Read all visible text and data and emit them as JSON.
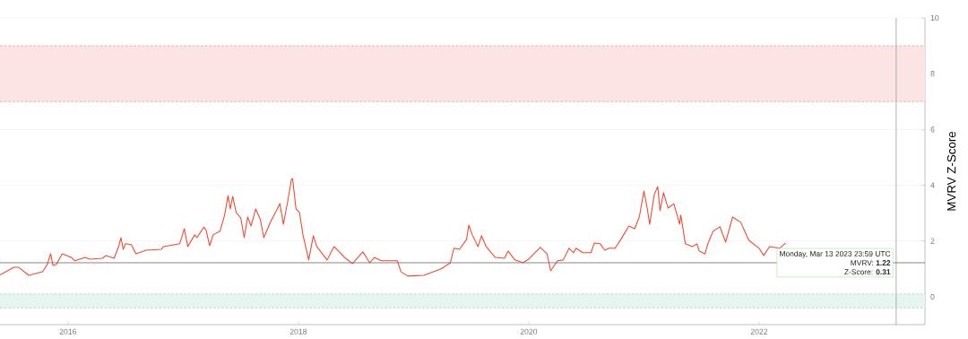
{
  "chart_data": {
    "type": "line",
    "ylabel": "MVRV Z-Score",
    "xlim": [
      2015.41,
      2023.44
    ],
    "ylim": [
      -1,
      10
    ],
    "xticks": [
      2016,
      2018,
      2020,
      2022
    ],
    "yticks": [
      0,
      2,
      4,
      6,
      8,
      10
    ],
    "grid": "y",
    "series": [
      {
        "color": "#f4462d",
        "x": [
          2015.41,
          2015.53,
          2015.57,
          2015.66,
          2015.78,
          2015.82,
          2015.85,
          2015.87,
          2015.9,
          2015.95,
          2016.03,
          2016.06,
          2016.15,
          2016.19,
          2016.3,
          2016.33,
          2016.4,
          2016.44,
          2016.46,
          2016.48,
          2016.5,
          2016.55,
          2016.59,
          2016.68,
          2016.81,
          2016.83,
          2016.97,
          2017.01,
          2017.04,
          2017.1,
          2017.12,
          2017.18,
          2017.2,
          2017.23,
          2017.26,
          2017.32,
          2017.36,
          2017.39,
          2017.41,
          2017.43,
          2017.46,
          2017.5,
          2017.53,
          2017.56,
          2017.59,
          2017.63,
          2017.67,
          2017.7,
          2017.76,
          2017.81,
          2017.84,
          2017.87,
          2017.91,
          2017.94,
          2017.95,
          2017.98,
          2018.01,
          2018.04,
          2018.09,
          2018.13,
          2018.16,
          2018.19,
          2018.25,
          2018.31,
          2018.41,
          2018.47,
          2018.56,
          2018.62,
          2018.66,
          2018.72,
          2018.86,
          2018.89,
          2018.95,
          2019.09,
          2019.24,
          2019.32,
          2019.35,
          2019.4,
          2019.46,
          2019.48,
          2019.51,
          2019.56,
          2019.59,
          2019.63,
          2019.71,
          2019.79,
          2019.82,
          2019.88,
          2019.95,
          2020.0,
          2020.1,
          2020.16,
          2020.19,
          2020.25,
          2020.3,
          2020.35,
          2020.39,
          2020.41,
          2020.47,
          2020.54,
          2020.57,
          2020.62,
          2020.66,
          2020.7,
          2020.75,
          2020.8,
          2020.87,
          2020.92,
          2020.96,
          2021.0,
          2021.03,
          2021.05,
          2021.09,
          2021.12,
          2021.14,
          2021.17,
          2021.21,
          2021.26,
          2021.31,
          2021.32,
          2021.36,
          2021.42,
          2021.46,
          2021.48,
          2021.53,
          2021.56,
          2021.6,
          2021.66,
          2021.71,
          2021.77,
          2021.84,
          2021.91,
          2022.0,
          2022.04,
          2022.09,
          2022.18,
          2022.23
        ],
        "values": [
          0.78,
          1.06,
          1.06,
          0.77,
          0.9,
          1.16,
          1.54,
          1.12,
          1.16,
          1.54,
          1.41,
          1.29,
          1.41,
          1.35,
          1.38,
          1.48,
          1.38,
          1.8,
          2.12,
          1.7,
          1.9,
          1.87,
          1.54,
          1.67,
          1.7,
          1.8,
          1.9,
          2.44,
          1.8,
          2.22,
          2.12,
          2.5,
          2.38,
          1.83,
          2.22,
          2.35,
          2.93,
          3.63,
          3.15,
          3.6,
          3.02,
          2.83,
          2.12,
          2.86,
          2.54,
          3.15,
          2.77,
          2.12,
          2.7,
          3.09,
          3.34,
          2.6,
          3.47,
          4.21,
          4.24,
          3.15,
          3.02,
          2.22,
          1.32,
          2.19,
          1.8,
          1.64,
          1.32,
          1.8,
          1.38,
          1.19,
          1.61,
          1.22,
          1.41,
          1.29,
          1.29,
          0.9,
          0.74,
          0.77,
          1.0,
          1.22,
          1.74,
          1.7,
          2.06,
          2.57,
          2.22,
          1.8,
          2.19,
          1.8,
          1.41,
          1.38,
          1.64,
          1.32,
          1.22,
          1.35,
          1.77,
          1.54,
          0.93,
          1.29,
          1.32,
          1.74,
          1.58,
          1.74,
          1.58,
          1.58,
          1.93,
          1.9,
          1.67,
          1.74,
          1.74,
          2.06,
          2.54,
          2.44,
          2.86,
          3.79,
          3.15,
          2.6,
          3.67,
          3.95,
          3.09,
          3.73,
          3.18,
          3.34,
          2.6,
          2.93,
          1.9,
          1.8,
          1.9,
          1.64,
          1.54,
          1.96,
          2.35,
          2.51,
          1.96,
          2.86,
          2.67,
          2.03,
          1.74,
          1.48,
          1.8,
          1.74,
          1.93
        ]
      }
    ],
    "bands": [
      {
        "axis": "y",
        "from": 7,
        "to": 9,
        "color": "#fce4e4"
      },
      {
        "axis": "y",
        "from": -0.4,
        "to": 0.1,
        "color": "#e6f5ef"
      }
    ],
    "ref_lines": [
      {
        "axis": "x",
        "value": 2023.19,
        "color": "#999999"
      },
      {
        "axis": "y",
        "value": 1.22,
        "color": "#666666"
      },
      {
        "axis": "y",
        "value": 9,
        "color": "#e8a0a0",
        "line_style": "dashed"
      },
      {
        "axis": "y",
        "value": 7,
        "color": "#e8a0a0",
        "line_style": "dashed"
      },
      {
        "axis": "y",
        "value": 0.1,
        "color": "#a8d8c0",
        "line_style": "dashed"
      },
      {
        "axis": "y",
        "value": -0.4,
        "color": "#a8d8c0",
        "line_style": "dashed"
      }
    ],
    "annotations": [
      {
        "text": "Monday, Mar 13 2023 23:59 UTC",
        "x": 2023.19,
        "y": 1.22
      },
      "MVRV: **1.22**",
      "Z-Score: **0.31**"
    ]
  }
}
